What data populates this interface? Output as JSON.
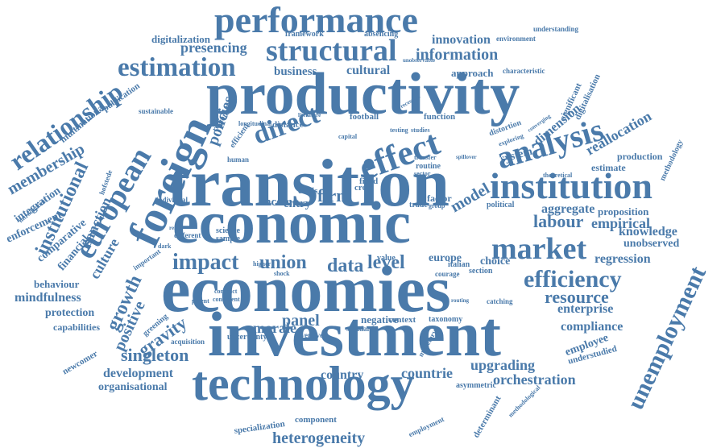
{
  "cloud": {
    "color": "#4a7aaa",
    "words": [
      "performance",
      "productivity",
      "structural",
      "estimation",
      "information",
      "innovation",
      "business",
      "cultural",
      "approach",
      "characteristic",
      "digitalization",
      "presencing",
      "framework",
      "absencing",
      "environment",
      "understanding",
      "unobservable",
      "relationship",
      "foreign",
      "european",
      "transition",
      "direct",
      "effect",
      "model",
      "analysis",
      "institution",
      "membership",
      "institutional",
      "sanction",
      "integration",
      "enforcement",
      "comparative",
      "financial",
      "culture",
      "growth",
      "economic",
      "firm",
      "income",
      "entry",
      "crisis",
      "factor",
      "political",
      "aggregate",
      "proposition",
      "labour",
      "empirical",
      "knowledge",
      "unobserved",
      "market",
      "impact",
      "union",
      "data",
      "level",
      "europe",
      "choice",
      "regression",
      "efficiency",
      "resource",
      "enterprise",
      "compliance",
      "employee",
      "understudied",
      "economies",
      "investment",
      "technology",
      "positive",
      "gravity",
      "singleton",
      "development",
      "organisational",
      "morale",
      "panel",
      "negative",
      "context",
      "taxonomy",
      "country",
      "countrie",
      "upgrading",
      "orchestration",
      "unemployment",
      "heterogeneity",
      "component",
      "specialization",
      "behaviour",
      "mindfulness",
      "protection",
      "capabilities",
      "newcomer",
      "policies",
      "distance",
      "football",
      "function",
      "system",
      "dimension",
      "reallocation",
      "production",
      "estimate",
      "methodology",
      "significant",
      "digitalisation",
      "multinational",
      "publication",
      "sustainable",
      "literature",
      "recession",
      "routine",
      "transfer",
      "sector",
      "spillover",
      "theoretical",
      "fixed",
      "cross",
      "trade",
      "group",
      "science",
      "sample",
      "patent",
      "greening",
      "acquisition",
      "uncertainty",
      "inventive",
      "standard",
      "catching",
      "asymmetric",
      "employment",
      "determinant",
      "methodological",
      "monetary",
      "italian",
      "courage",
      "section",
      "human",
      "individual",
      "introduction",
      "rent",
      "dark",
      "hofstede",
      "different",
      "contract",
      "consistent",
      "higher",
      "shock",
      "value",
      "routing",
      "distortion",
      "exploring",
      "converging",
      "testing",
      "studies",
      "capital",
      "longitudinal",
      "regional",
      "efficient",
      "important"
    ]
  }
}
